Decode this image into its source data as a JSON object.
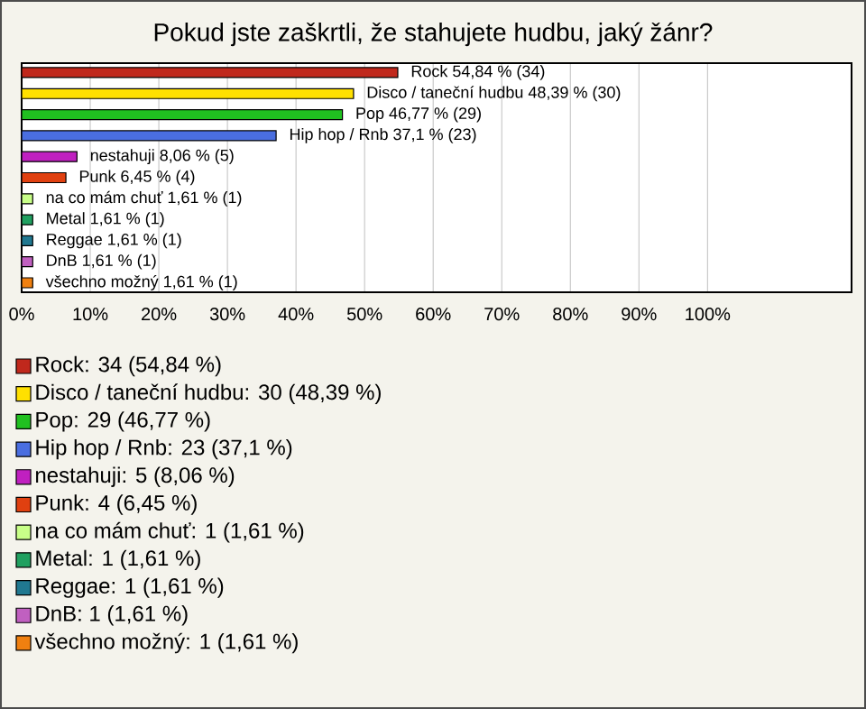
{
  "chart_data": {
    "type": "bar",
    "orientation": "horizontal",
    "title": "Pokud jste zaškrtli, že stahujete hudbu, jaký žánr?",
    "categories": [
      null,
      null,
      null,
      null,
      null,
      null,
      null,
      null,
      null,
      null,
      null
    ],
    "values": [
      54.84,
      48.39,
      46.77,
      37.1,
      8.06,
      6.45,
      1.61,
      1.61,
      1.61,
      1.61,
      1.61
    ],
    "colors": [
      "#c0281c",
      "#ffe000",
      "#20c020",
      "#4a6ee0",
      "#c020c0",
      "#e04010",
      "#c8ff88",
      "#20a060",
      "#207890",
      "#c060c0",
      "#f08010"
    ],
    "value_labels": [
      "Rock 54,84 % (34)",
      "Disco / taneční hudbu 48,39 % (30)",
      "Pop 46,77 % (29)",
      "Hip hop / Rnb 37,1 % (23)",
      "nestahuji 8,06 % (5)",
      "Punk 6,45 % (4)",
      "na co mám chuť 1,61 % (1)",
      "Metal 1,61 % (1)",
      "Reggae 1,61 % (1)",
      "DnB 1,61 % (1)",
      "všechno možný 1,61 % (1)"
    ],
    "xlim": [
      0,
      121
    ],
    "xticks": [
      {
        "value": 0,
        "label": "0%"
      },
      {
        "value": 10,
        "label": "10%"
      },
      {
        "value": 20,
        "label": "20%"
      },
      {
        "value": 30,
        "label": "30%"
      },
      {
        "value": 40,
        "label": "40%"
      },
      {
        "value": 50,
        "label": "50%"
      },
      {
        "value": 60,
        "label": "60%"
      },
      {
        "value": 70,
        "label": "70%"
      },
      {
        "value": 80,
        "label": "80%"
      },
      {
        "value": 90,
        "label": "90%"
      },
      {
        "value": 100,
        "label": "100%"
      }
    ],
    "grid": "x",
    "annotations": [
      "Rock: 34 (54,84 %)",
      "Disco / taneční hudbu: 30 (48,39 %)",
      "Pop: 29 (46,77 %)",
      "Hip hop / Rnb: 23 (37,1 %)",
      "nestahuji: 5 (8,06 %)",
      "Punk: 4 (6,45 %)",
      "na co mám chuť: 1 (1,61 %)",
      "Metal: 1 (1,61 %)",
      "Reggae: 1 (1,61 %)",
      "DnB: 1 (1,61 %)",
      "všechno možný: 1 (1,61 %)"
    ]
  }
}
